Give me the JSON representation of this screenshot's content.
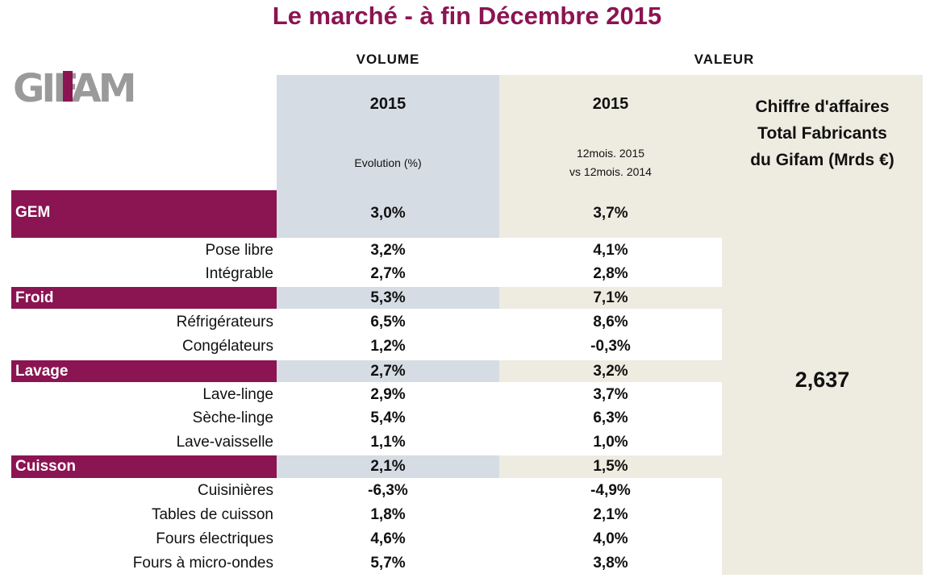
{
  "title": "Le marché - à fin Décembre 2015",
  "logo_text": "GIFAM",
  "headers": {
    "volume": "VOLUME",
    "valeur": "VALEUR",
    "volume_year": "2015",
    "valeur_year": "2015",
    "volume_sub": "Evolution (%)",
    "valeur_sub_line1": "12mois. 2015",
    "valeur_sub_line2": "vs 12mois. 2014",
    "ca_line1": "Chiffre d'affaires",
    "ca_line2": "Total Fabricants",
    "ca_line3": "du Gifam (Mrds €)"
  },
  "ca_value": "2,637",
  "colors": {
    "accent": "#8b1452",
    "volume_bg": "#d5dce4",
    "valeur_bg": "#eeece1"
  },
  "rows": {
    "gem": {
      "label": "GEM",
      "volume": "3,0%",
      "valeur": "3,7%"
    },
    "pose_libre": {
      "label": "Pose libre",
      "volume": "3,2%",
      "valeur": "4,1%"
    },
    "integrable": {
      "label": "Intégrable",
      "volume": "2,7%",
      "valeur": "2,8%"
    },
    "froid": {
      "label": "Froid",
      "volume": "5,3%",
      "valeur": "7,1%"
    },
    "refrigerateurs": {
      "label": "Réfrigérateurs",
      "volume": "6,5%",
      "valeur": "8,6%"
    },
    "congelateurs": {
      "label": "Congélateurs",
      "volume": "1,2%",
      "valeur": "-0,3%"
    },
    "lavage": {
      "label": "Lavage",
      "volume": "2,7%",
      "valeur": "3,2%"
    },
    "lave_linge": {
      "label": "Lave-linge",
      "volume": "2,9%",
      "valeur": "3,7%"
    },
    "seche_linge": {
      "label": "Sèche-linge",
      "volume": "5,4%",
      "valeur": "6,3%"
    },
    "lave_vaisselle": {
      "label": "Lave-vaisselle",
      "volume": "1,1%",
      "valeur": "1,0%"
    },
    "cuisson": {
      "label": "Cuisson",
      "volume": "2,1%",
      "valeur": "1,5%"
    },
    "cuisinieres": {
      "label": "Cuisinières",
      "volume": "-6,3%",
      "valeur": "-4,9%"
    },
    "tables_cuisson": {
      "label": "Tables de cuisson",
      "volume": "1,8%",
      "valeur": "2,1%"
    },
    "fours_elec": {
      "label": "Fours électriques",
      "volume": "4,6%",
      "valeur": "4,0%"
    },
    "fours_micro": {
      "label": "Fours à micro-ondes",
      "volume": "5,7%",
      "valeur": "3,8%"
    }
  }
}
